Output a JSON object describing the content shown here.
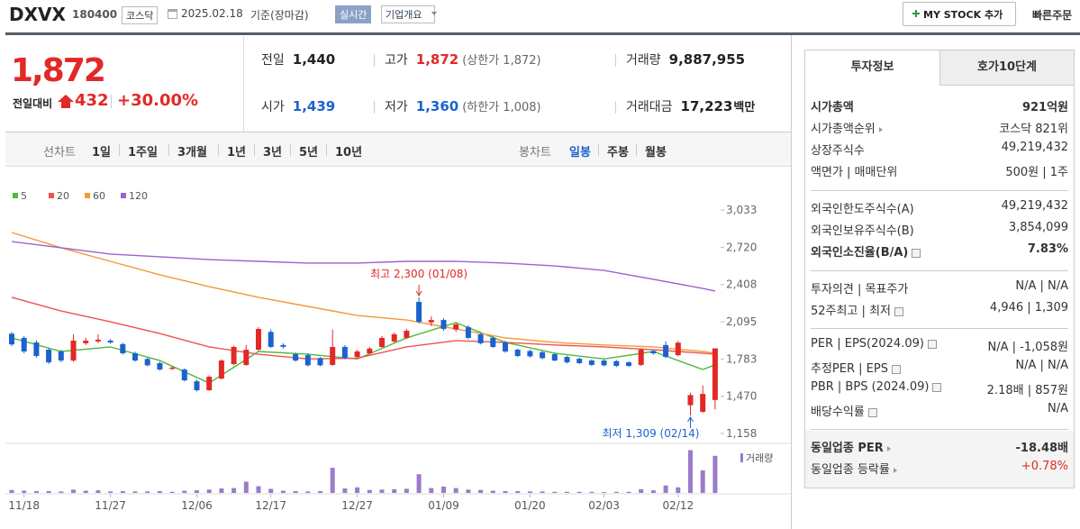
{
  "header": {
    "name": "DXVX",
    "code": "180400",
    "market": "코스닥",
    "date": "2025.02.18",
    "basis": "기준(장마감)",
    "realtime": "실시간",
    "company": "기업개요",
    "mystock": "MY STOCK 추가",
    "quick": "빠른주문"
  },
  "quote": {
    "price": "1,872",
    "change_label": "전일대비",
    "change": "432",
    "rate": "+30.00%",
    "stats": [
      {
        "label": "전일",
        "value": "1,440",
        "color": "black"
      },
      {
        "label": "고가",
        "value": "1,872",
        "color": "red",
        "extra": "(상한가 1,872)"
      },
      {
        "label": "거래량",
        "value": "9,887,955",
        "color": "black"
      },
      {
        "label": "시가",
        "value": "1,439",
        "color": "blue"
      },
      {
        "label": "저가",
        "value": "1,360",
        "color": "blue",
        "extra": "(하한가 1,008)"
      },
      {
        "label": "거래대금",
        "value": "17,223",
        "color": "black",
        "unit": "백만"
      }
    ]
  },
  "tabs": {
    "line_label": "선차트",
    "periods": [
      "1일",
      "1주일",
      "3개월",
      "1년",
      "3년",
      "5년",
      "10년"
    ],
    "candle_label": "봉차트",
    "candle_periods": [
      "일봉",
      "주봉",
      "월봉"
    ],
    "active": "일봉"
  },
  "chart_data": {
    "type": "candlestick",
    "up_color": "#e22926",
    "down_color": "#1b62cf",
    "ylim": [
      1090,
      3358
    ],
    "yticks": [
      {
        "value": 3033,
        "label": "3,033"
      },
      {
        "value": 2720,
        "label": "2,720"
      },
      {
        "value": 2408,
        "label": "2,408"
      },
      {
        "value": 2095,
        "label": "2,095"
      },
      {
        "value": 1783,
        "label": "1,783"
      },
      {
        "value": 1470,
        "label": "1,470"
      },
      {
        "value": 1158,
        "label": "1,158"
      }
    ],
    "xticks": [
      {
        "value": 1,
        "label": "11/18"
      },
      {
        "value": 8,
        "label": "11/27"
      },
      {
        "value": 15,
        "label": "12/06"
      },
      {
        "value": 21,
        "label": "12/17"
      },
      {
        "value": 28,
        "label": "12/27"
      },
      {
        "value": 35,
        "label": "01/09"
      },
      {
        "value": 42,
        "label": "01/20"
      },
      {
        "value": 48,
        "label": "02/03"
      },
      {
        "value": 54,
        "label": "02/12"
      }
    ],
    "ohlc": [
      [
        1995,
        2010,
        1890,
        1905
      ],
      [
        1960,
        1975,
        1830,
        1846
      ],
      [
        1922,
        1940,
        1795,
        1808
      ],
      [
        1861,
        1875,
        1740,
        1755
      ],
      [
        1846,
        1860,
        1755,
        1770
      ],
      [
        1770,
        1990,
        1760,
        1937
      ],
      [
        1915,
        1960,
        1900,
        1937
      ],
      [
        1930,
        1990,
        1915,
        1945
      ],
      [
        1937,
        1950,
        1910,
        1922
      ],
      [
        1907,
        1920,
        1820,
        1831
      ],
      [
        1831,
        1845,
        1760,
        1770
      ],
      [
        1783,
        1795,
        1720,
        1730
      ],
      [
        1748,
        1760,
        1685,
        1695
      ],
      [
        1700,
        1725,
        1690,
        1710
      ],
      [
        1695,
        1705,
        1595,
        1604
      ],
      [
        1596,
        1610,
        1510,
        1521
      ],
      [
        1521,
        1645,
        1515,
        1634
      ],
      [
        1619,
        1780,
        1610,
        1770
      ],
      [
        1740,
        1895,
        1730,
        1884
      ],
      [
        1733,
        1900,
        1725,
        1861
      ],
      [
        1861,
        2050,
        1850,
        2035
      ],
      [
        2010,
        2030,
        1875,
        1884
      ],
      [
        1900,
        1915,
        1870,
        1885
      ],
      [
        1823,
        1835,
        1760,
        1770
      ],
      [
        1815,
        1830,
        1720,
        1730
      ],
      [
        1790,
        1800,
        1720,
        1730
      ],
      [
        1733,
        2030,
        1725,
        1884
      ],
      [
        1884,
        1900,
        1780,
        1793
      ],
      [
        1800,
        1860,
        1790,
        1846
      ],
      [
        1830,
        1885,
        1820,
        1870
      ],
      [
        1884,
        1975,
        1875,
        1960
      ],
      [
        1930,
        2005,
        1920,
        1990
      ],
      [
        1960,
        2035,
        1950,
        2020
      ],
      [
        2262,
        2300,
        2080,
        2095
      ],
      [
        2090,
        2140,
        2060,
        2110
      ],
      [
        2110,
        2125,
        2020,
        2035
      ],
      [
        2030,
        2090,
        2010,
        2073
      ],
      [
        2050,
        2065,
        1950,
        1960
      ],
      [
        1990,
        2000,
        1905,
        1915
      ],
      [
        1960,
        1975,
        1875,
        1884
      ],
      [
        1922,
        1935,
        1835,
        1846
      ],
      [
        1861,
        1870,
        1800,
        1808
      ],
      [
        1850,
        1860,
        1795,
        1805
      ],
      [
        1840,
        1850,
        1780,
        1790
      ],
      [
        1823,
        1835,
        1765,
        1770
      ],
      [
        1800,
        1810,
        1745,
        1755
      ],
      [
        1785,
        1795,
        1740,
        1748
      ],
      [
        1770,
        1780,
        1725,
        1733
      ],
      [
        1770,
        1780,
        1720,
        1730
      ],
      [
        1765,
        1775,
        1715,
        1725
      ],
      [
        1755,
        1765,
        1715,
        1725
      ],
      [
        1733,
        1870,
        1725,
        1861
      ],
      [
        1850,
        1860,
        1820,
        1830
      ],
      [
        1900,
        1930,
        1790,
        1800
      ],
      [
        1815,
        1935,
        1805,
        1920
      ],
      [
        1395,
        1500,
        1309,
        1480
      ],
      [
        1340,
        1560,
        1330,
        1490
      ],
      [
        1439,
        1872,
        1360,
        1872
      ]
    ],
    "series_x": [
      0,
      4,
      8,
      12,
      16,
      20,
      24,
      28,
      32,
      36,
      40,
      44,
      48,
      52,
      56,
      57
    ],
    "series": [
      {
        "name": "5",
        "color": "#4cbb3a",
        "values": [
          1960,
          1846,
          1884,
          1770,
          1581,
          1846,
          1823,
          1783,
          1960,
          2088,
          1922,
          1831,
          1783,
          1846,
          1695,
          1733
        ]
      },
      {
        "name": "20",
        "color": "#ee5250",
        "values": [
          2300,
          2186,
          2095,
          1997,
          1884,
          1823,
          1783,
          1790,
          1884,
          1937,
          1922,
          1900,
          1884,
          1861,
          1831,
          1823
        ]
      },
      {
        "name": "60",
        "color": "#f5983a",
        "values": [
          2844,
          2716,
          2602,
          2489,
          2390,
          2300,
          2224,
          2148,
          2110,
          2035,
          1960,
          1922,
          1900,
          1884,
          1846,
          1831
        ]
      },
      {
        "name": "120",
        "color": "#9a63cc",
        "values": [
          2768,
          2716,
          2663,
          2640,
          2617,
          2602,
          2587,
          2587,
          2602,
          2602,
          2587,
          2564,
          2526,
          2451,
          2375,
          2353
        ]
      }
    ],
    "volume_label": "거래량",
    "volume_color": "#9b7cc8",
    "volume_lim": [
      0,
      12000000
    ],
    "volume": [
      800000,
      600000,
      500000,
      500000,
      400000,
      900000,
      600000,
      700000,
      400000,
      500000,
      400000,
      400000,
      500000,
      300000,
      600000,
      700000,
      900000,
      1200000,
      1300000,
      3000000,
      1800000,
      1100000,
      600000,
      500000,
      400000,
      500000,
      6700000,
      1200000,
      1500000,
      800000,
      900000,
      1000000,
      1100000,
      5000000,
      1300000,
      1700000,
      1300000,
      900000,
      800000,
      600000,
      500000,
      500000,
      400000,
      400000,
      300000,
      300000,
      300000,
      300000,
      200000,
      300000,
      300000,
      1000000,
      700000,
      2000000,
      1500000,
      11400000,
      6000000,
      9887955
    ],
    "annotations": [
      {
        "text": "최고 2,300 (01/08)",
        "index": 33,
        "value": 2300,
        "color": "#e22926"
      },
      {
        "text": "최저 1,309 (02/14)",
        "index": 55,
        "value": 1309,
        "color": "#1b62cf"
      }
    ]
  },
  "info": {
    "tabs": [
      "투자정보",
      "호가10단계"
    ],
    "groups": [
      [
        {
          "label": "시가총액",
          "value": "921억원",
          "bold": true
        },
        {
          "label": "시가총액순위",
          "value": "코스닥 821위",
          "arrow": true
        },
        {
          "label": "상장주식수",
          "value": "49,219,432"
        },
        {
          "label": "액면가 | 매매단위",
          "value": "500원 | 1주"
        }
      ],
      [
        {
          "label": "외국인한도주식수(A)",
          "value": "49,219,432"
        },
        {
          "label": "외국인보유주식수(B)",
          "value": "3,854,099"
        },
        {
          "label": "외국인소진율(B/A)",
          "value": "7.83%",
          "bold": true,
          "help": true
        }
      ],
      [
        {
          "label": "투자의견 | 목표주가",
          "value": "N/A | N/A"
        },
        {
          "label": "52주최고 | 최저",
          "value": "4,946 | 1,309",
          "help": true
        }
      ],
      [
        {
          "label": "PER | EPS(2024.09)",
          "value": "N/A | -1,058원",
          "help": true
        },
        {
          "label": "추정PER | EPS",
          "value": "N/A | N/A",
          "help": true
        },
        {
          "label": "PBR | BPS (2024.09)",
          "value": "2.18배 | 857원",
          "help": true
        },
        {
          "label": "배당수익률",
          "value": "N/A",
          "help": true
        }
      ],
      [
        {
          "label": "동일업종 PER",
          "value": "-18.48배",
          "bold": true,
          "arrow": true
        },
        {
          "label": "동일업종 등락률",
          "value": "+0.78%",
          "arrow": true,
          "color": "#e22926"
        }
      ]
    ]
  }
}
